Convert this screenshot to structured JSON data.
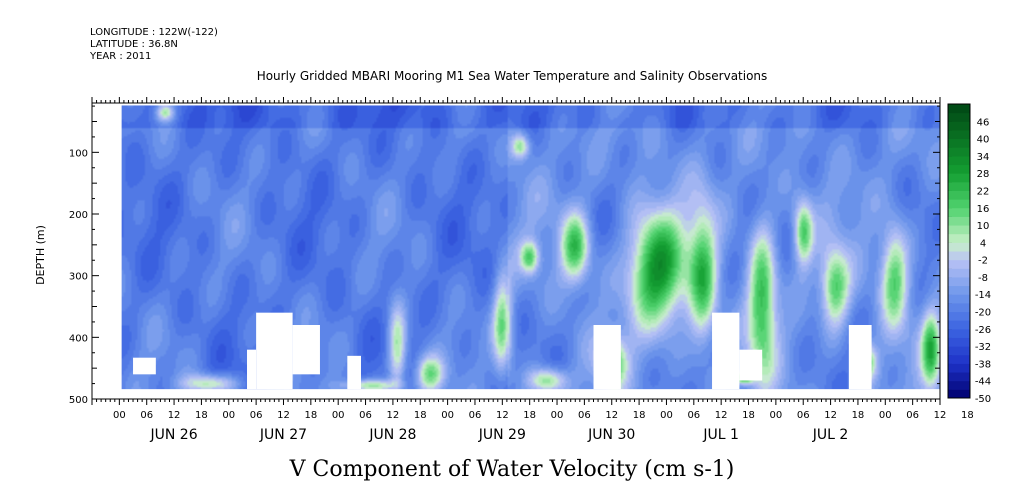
{
  "header": {
    "longitude": "LONGITUDE : 122W(-122)",
    "latitude": "LATITUDE : 36.8N",
    "year": "YEAR : 2011"
  },
  "chart_data": {
    "type": "heatmap",
    "title": "Hourly Gridded MBARI Mooring M1 Sea Water Temperature and Salinity Observations",
    "xlabel": "V Component of Water Velocity (cm s-1)",
    "ylabel": "DEPTH (m)",
    "x_hour_ticks": [
      "00",
      "06",
      "12",
      "18",
      "00",
      "06",
      "12",
      "18",
      "00",
      "06",
      "12",
      "18",
      "00",
      "06",
      "12",
      "18",
      "00",
      "06",
      "12",
      "18",
      "00",
      "06",
      "12",
      "18",
      "00",
      "06",
      "12",
      "18",
      "00",
      "06",
      "12",
      "18"
    ],
    "x_date_labels": [
      "JUN 26",
      "JUN 27",
      "JUN 28",
      "JUN 29",
      "JUN 30",
      "JUL  1",
      "JUL  2"
    ],
    "xlim_hours": [
      -6,
      180
    ],
    "y_ticks": [
      100,
      200,
      300,
      400,
      500
    ],
    "ylim": [
      20,
      500
    ],
    "y_inverted": true,
    "data_depth_range": [
      24,
      484
    ],
    "colorbar": {
      "labels": [
        "46",
        "40",
        "34",
        "28",
        "22",
        "16",
        "10",
        "4",
        "-2",
        "-8",
        "-14",
        "-20",
        "-26",
        "-32",
        "-38",
        "-44",
        "-50"
      ],
      "range": [
        -50,
        52
      ],
      "step": 3
    },
    "gaps": [
      {
        "hour_start": 3,
        "hour_end": 8,
        "depth_top": 433,
        "depth_bottom": 460
      },
      {
        "hour_start": 28,
        "hour_end": 30,
        "depth_top": 420,
        "depth_bottom": 484
      },
      {
        "hour_start": 30,
        "hour_end": 38,
        "depth_top": 360,
        "depth_bottom": 484
      },
      {
        "hour_start": 38,
        "hour_end": 44,
        "depth_top": 380,
        "depth_bottom": 460
      },
      {
        "hour_start": 50,
        "hour_end": 53,
        "depth_top": 430,
        "depth_bottom": 484
      },
      {
        "hour_start": 104,
        "hour_end": 110,
        "depth_top": 380,
        "depth_bottom": 484
      },
      {
        "hour_start": 130,
        "hour_end": 136,
        "depth_top": 360,
        "depth_bottom": 484
      },
      {
        "hour_start": 136,
        "hour_end": 141,
        "depth_top": 420,
        "depth_bottom": 470
      },
      {
        "hour_start": 160,
        "hour_end": 165,
        "depth_top": 380,
        "depth_bottom": 484
      }
    ],
    "positive_patches": [
      {
        "hour": 118,
        "depth": 290,
        "hw": 6,
        "hd": 90,
        "v": 24
      },
      {
        "hour": 100,
        "depth": 255,
        "hw": 3,
        "hd": 55,
        "v": 12
      },
      {
        "hour": 84,
        "depth": 380,
        "hw": 2,
        "hd": 80,
        "v": 8
      },
      {
        "hour": 128,
        "depth": 300,
        "hw": 3,
        "hd": 110,
        "v": 10
      },
      {
        "hour": 141,
        "depth": 340,
        "hw": 3,
        "hd": 120,
        "v": 14
      },
      {
        "hour": 150,
        "depth": 230,
        "hw": 2,
        "hd": 50,
        "v": 10
      },
      {
        "hour": 157,
        "depth": 320,
        "hw": 3,
        "hd": 60,
        "v": 10
      },
      {
        "hour": 170,
        "depth": 300,
        "hw": 3,
        "hd": 80,
        "v": 9
      },
      {
        "hour": 178,
        "depth": 420,
        "hw": 2,
        "hd": 60,
        "v": 12
      },
      {
        "hour": 61,
        "depth": 420,
        "hw": 2,
        "hd": 70,
        "v": 6
      },
      {
        "hour": 108,
        "depth": 440,
        "hw": 3,
        "hd": 40,
        "v": 10
      },
      {
        "hour": 94,
        "depth": 470,
        "hw": 4,
        "hd": 20,
        "v": 6
      },
      {
        "hour": 90,
        "depth": 270,
        "hw": 2,
        "hd": 25,
        "v": 6
      },
      {
        "hour": 68,
        "depth": 460,
        "hw": 3,
        "hd": 30,
        "v": 6
      },
      {
        "hour": 10,
        "depth": 35,
        "hw": 2,
        "hd": 15,
        "v": 5
      },
      {
        "hour": 88,
        "depth": 90,
        "hw": 2,
        "hd": 20,
        "v": 4
      },
      {
        "hour": 20,
        "depth": 475,
        "hw": 6,
        "hd": 15,
        "v": 4
      },
      {
        "hour": 55,
        "depth": 478,
        "hw": 6,
        "hd": 10,
        "v": 5
      },
      {
        "hour": 137,
        "depth": 465,
        "hw": 2,
        "hd": 10,
        "v": 20
      },
      {
        "hour": 164,
        "depth": 440,
        "hw": 2,
        "hd": 30,
        "v": 8
      }
    ]
  }
}
